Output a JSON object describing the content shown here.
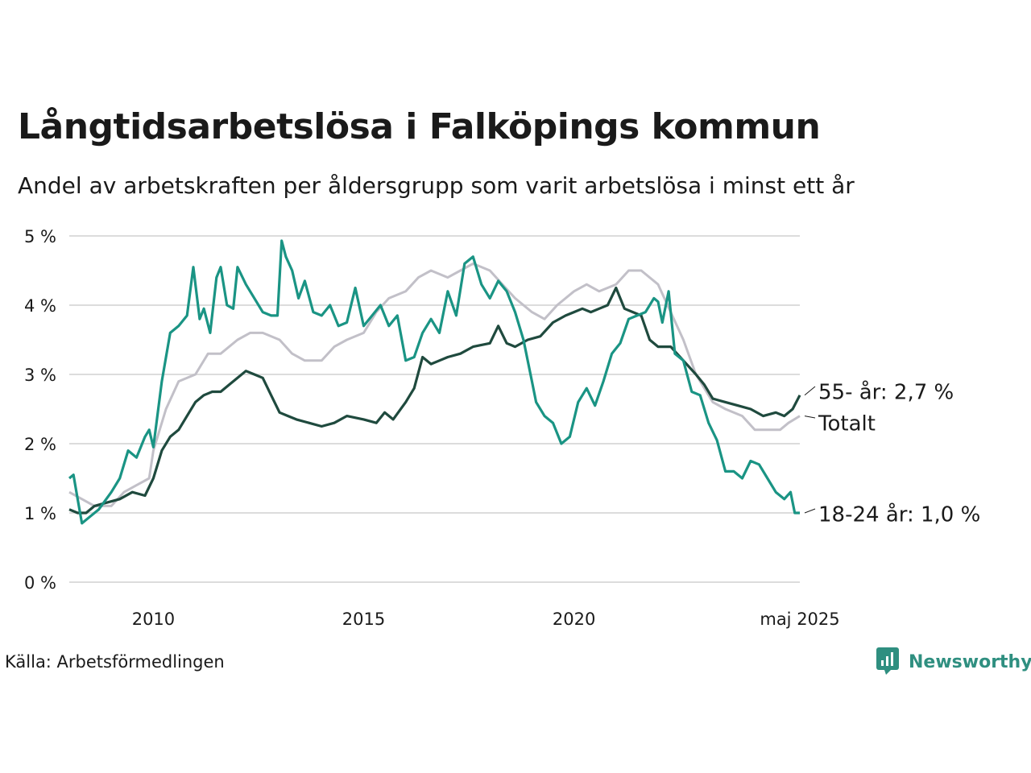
{
  "header": {
    "title": "Långtidsarbetslösa i Falköpings kommun",
    "subtitle": "Andel av arbetskraften per åldersgrupp som varit arbetslösa i minst ett år"
  },
  "footer": {
    "source": "Källa: Arbetsförmedlingen",
    "brand": "Newsworthy",
    "brand_icon": "newsworthy-logo-icon"
  },
  "colors": {
    "youth": "#1a9484",
    "older": "#1f4a3e",
    "total": "#c2c0c8",
    "grid": "#dcdcdc",
    "text": "#1a1a1a"
  },
  "chart_data": {
    "type": "line",
    "x_unit": "year (decimal)",
    "xlim": [
      2008.0,
      2025.37
    ],
    "ylim": [
      0,
      5
    ],
    "y_ticks": [
      0,
      1,
      2,
      3,
      4,
      5
    ],
    "y_tick_labels": [
      "0 %",
      "1 %",
      "2 %",
      "3 %",
      "4 %",
      "5 %"
    ],
    "x_ticks": [
      2010,
      2015,
      2020,
      2025.37
    ],
    "x_tick_labels": [
      "2010",
      "2015",
      "2020",
      "maj 2025"
    ],
    "grid": "horizontal",
    "legend": "end-labels-right",
    "series": [
      {
        "name": "Totalt",
        "key": "total",
        "label": "Totalt",
        "points": [
          [
            2008.0,
            1.3
          ],
          [
            2008.3,
            1.2
          ],
          [
            2008.6,
            1.1
          ],
          [
            2009.0,
            1.1
          ],
          [
            2009.3,
            1.3
          ],
          [
            2009.6,
            1.4
          ],
          [
            2009.9,
            1.5
          ],
          [
            2010.0,
            1.9
          ],
          [
            2010.3,
            2.5
          ],
          [
            2010.6,
            2.9
          ],
          [
            2011.0,
            3.0
          ],
          [
            2011.3,
            3.3
          ],
          [
            2011.6,
            3.3
          ],
          [
            2012.0,
            3.5
          ],
          [
            2012.3,
            3.6
          ],
          [
            2012.6,
            3.6
          ],
          [
            2013.0,
            3.5
          ],
          [
            2013.3,
            3.3
          ],
          [
            2013.6,
            3.2
          ],
          [
            2014.0,
            3.2
          ],
          [
            2014.3,
            3.4
          ],
          [
            2014.6,
            3.5
          ],
          [
            2015.0,
            3.6
          ],
          [
            2015.3,
            3.9
          ],
          [
            2015.6,
            4.1
          ],
          [
            2016.0,
            4.2
          ],
          [
            2016.3,
            4.4
          ],
          [
            2016.6,
            4.5
          ],
          [
            2017.0,
            4.4
          ],
          [
            2017.3,
            4.5
          ],
          [
            2017.6,
            4.6
          ],
          [
            2018.0,
            4.5
          ],
          [
            2018.3,
            4.3
          ],
          [
            2018.6,
            4.1
          ],
          [
            2019.0,
            3.9
          ],
          [
            2019.3,
            3.8
          ],
          [
            2019.6,
            4.0
          ],
          [
            2020.0,
            4.2
          ],
          [
            2020.3,
            4.3
          ],
          [
            2020.6,
            4.2
          ],
          [
            2021.0,
            4.3
          ],
          [
            2021.3,
            4.5
          ],
          [
            2021.6,
            4.5
          ],
          [
            2022.0,
            4.3
          ],
          [
            2022.3,
            3.9
          ],
          [
            2022.6,
            3.5
          ],
          [
            2022.9,
            3.0
          ],
          [
            2023.3,
            2.6
          ],
          [
            2023.6,
            2.5
          ],
          [
            2024.0,
            2.4
          ],
          [
            2024.3,
            2.2
          ],
          [
            2024.6,
            2.2
          ],
          [
            2024.9,
            2.2
          ],
          [
            2025.1,
            2.3
          ],
          [
            2025.37,
            2.4
          ]
        ]
      },
      {
        "name": "55- år",
        "key": "older",
        "label": "55- år: 2,7 %",
        "points": [
          [
            2008.0,
            1.05
          ],
          [
            2008.2,
            1.0
          ],
          [
            2008.4,
            1.0
          ],
          [
            2008.6,
            1.1
          ],
          [
            2008.9,
            1.15
          ],
          [
            2009.2,
            1.2
          ],
          [
            2009.5,
            1.3
          ],
          [
            2009.8,
            1.25
          ],
          [
            2010.0,
            1.5
          ],
          [
            2010.2,
            1.9
          ],
          [
            2010.4,
            2.1
          ],
          [
            2010.6,
            2.2
          ],
          [
            2010.8,
            2.4
          ],
          [
            2011.0,
            2.6
          ],
          [
            2011.2,
            2.7
          ],
          [
            2011.4,
            2.75
          ],
          [
            2011.6,
            2.75
          ],
          [
            2011.8,
            2.85
          ],
          [
            2012.0,
            2.95
          ],
          [
            2012.2,
            3.05
          ],
          [
            2012.4,
            3.0
          ],
          [
            2012.6,
            2.95
          ],
          [
            2012.8,
            2.7
          ],
          [
            2013.0,
            2.45
          ],
          [
            2013.2,
            2.4
          ],
          [
            2013.4,
            2.35
          ],
          [
            2013.7,
            2.3
          ],
          [
            2014.0,
            2.25
          ],
          [
            2014.3,
            2.3
          ],
          [
            2014.6,
            2.4
          ],
          [
            2015.0,
            2.35
          ],
          [
            2015.3,
            2.3
          ],
          [
            2015.5,
            2.45
          ],
          [
            2015.7,
            2.35
          ],
          [
            2016.0,
            2.6
          ],
          [
            2016.2,
            2.8
          ],
          [
            2016.4,
            3.25
          ],
          [
            2016.6,
            3.15
          ],
          [
            2016.8,
            3.2
          ],
          [
            2017.0,
            3.25
          ],
          [
            2017.3,
            3.3
          ],
          [
            2017.6,
            3.4
          ],
          [
            2018.0,
            3.45
          ],
          [
            2018.2,
            3.7
          ],
          [
            2018.4,
            3.45
          ],
          [
            2018.6,
            3.4
          ],
          [
            2018.9,
            3.5
          ],
          [
            2019.2,
            3.55
          ],
          [
            2019.5,
            3.75
          ],
          [
            2019.8,
            3.85
          ],
          [
            2020.0,
            3.9
          ],
          [
            2020.2,
            3.95
          ],
          [
            2020.4,
            3.9
          ],
          [
            2020.6,
            3.95
          ],
          [
            2020.8,
            4.0
          ],
          [
            2021.0,
            4.25
          ],
          [
            2021.2,
            3.95
          ],
          [
            2021.4,
            3.9
          ],
          [
            2021.6,
            3.85
          ],
          [
            2021.8,
            3.5
          ],
          [
            2022.0,
            3.4
          ],
          [
            2022.3,
            3.4
          ],
          [
            2022.6,
            3.2
          ],
          [
            2022.9,
            3.0
          ],
          [
            2023.1,
            2.85
          ],
          [
            2023.3,
            2.65
          ],
          [
            2023.6,
            2.6
          ],
          [
            2023.9,
            2.55
          ],
          [
            2024.2,
            2.5
          ],
          [
            2024.5,
            2.4
          ],
          [
            2024.8,
            2.45
          ],
          [
            2025.0,
            2.4
          ],
          [
            2025.2,
            2.5
          ],
          [
            2025.37,
            2.7
          ]
        ]
      },
      {
        "name": "18-24 år",
        "key": "youth",
        "label": "18-24 år: 1,0 %",
        "points": [
          [
            2008.0,
            1.5
          ],
          [
            2008.1,
            1.55
          ],
          [
            2008.2,
            1.2
          ],
          [
            2008.3,
            0.85
          ],
          [
            2008.5,
            0.95
          ],
          [
            2008.7,
            1.05
          ],
          [
            2009.0,
            1.3
          ],
          [
            2009.2,
            1.5
          ],
          [
            2009.4,
            1.9
          ],
          [
            2009.6,
            1.8
          ],
          [
            2009.8,
            2.1
          ],
          [
            2009.9,
            2.2
          ],
          [
            2010.0,
            1.95
          ],
          [
            2010.2,
            2.9
          ],
          [
            2010.4,
            3.6
          ],
          [
            2010.6,
            3.7
          ],
          [
            2010.8,
            3.85
          ],
          [
            2010.95,
            4.55
          ],
          [
            2011.1,
            3.8
          ],
          [
            2011.2,
            3.95
          ],
          [
            2011.35,
            3.6
          ],
          [
            2011.5,
            4.4
          ],
          [
            2011.6,
            4.55
          ],
          [
            2011.75,
            4.0
          ],
          [
            2011.9,
            3.95
          ],
          [
            2012.0,
            4.55
          ],
          [
            2012.2,
            4.3
          ],
          [
            2012.4,
            4.1
          ],
          [
            2012.6,
            3.9
          ],
          [
            2012.8,
            3.85
          ],
          [
            2012.95,
            3.85
          ],
          [
            2013.05,
            4.93
          ],
          [
            2013.15,
            4.7
          ],
          [
            2013.3,
            4.5
          ],
          [
            2013.45,
            4.1
          ],
          [
            2013.6,
            4.35
          ],
          [
            2013.8,
            3.9
          ],
          [
            2014.0,
            3.85
          ],
          [
            2014.2,
            4.0
          ],
          [
            2014.4,
            3.7
          ],
          [
            2014.6,
            3.75
          ],
          [
            2014.8,
            4.25
          ],
          [
            2015.0,
            3.7
          ],
          [
            2015.2,
            3.85
          ],
          [
            2015.4,
            4.0
          ],
          [
            2015.6,
            3.7
          ],
          [
            2015.8,
            3.85
          ],
          [
            2016.0,
            3.2
          ],
          [
            2016.2,
            3.25
          ],
          [
            2016.4,
            3.6
          ],
          [
            2016.6,
            3.8
          ],
          [
            2016.8,
            3.6
          ],
          [
            2017.0,
            4.2
          ],
          [
            2017.2,
            3.85
          ],
          [
            2017.4,
            4.6
          ],
          [
            2017.6,
            4.7
          ],
          [
            2017.8,
            4.3
          ],
          [
            2018.0,
            4.1
          ],
          [
            2018.2,
            4.35
          ],
          [
            2018.4,
            4.2
          ],
          [
            2018.6,
            3.9
          ],
          [
            2018.8,
            3.5
          ],
          [
            2019.0,
            2.9
          ],
          [
            2019.1,
            2.6
          ],
          [
            2019.3,
            2.4
          ],
          [
            2019.5,
            2.3
          ],
          [
            2019.7,
            2.0
          ],
          [
            2019.9,
            2.1
          ],
          [
            2020.1,
            2.6
          ],
          [
            2020.3,
            2.8
          ],
          [
            2020.5,
            2.55
          ],
          [
            2020.7,
            2.9
          ],
          [
            2020.9,
            3.3
          ],
          [
            2021.1,
            3.45
          ],
          [
            2021.3,
            3.8
          ],
          [
            2021.5,
            3.85
          ],
          [
            2021.7,
            3.9
          ],
          [
            2021.9,
            4.1
          ],
          [
            2022.0,
            4.05
          ],
          [
            2022.1,
            3.75
          ],
          [
            2022.25,
            4.2
          ],
          [
            2022.4,
            3.3
          ],
          [
            2022.6,
            3.2
          ],
          [
            2022.8,
            2.75
          ],
          [
            2023.0,
            2.7
          ],
          [
            2023.2,
            2.3
          ],
          [
            2023.4,
            2.05
          ],
          [
            2023.6,
            1.6
          ],
          [
            2023.8,
            1.6
          ],
          [
            2024.0,
            1.5
          ],
          [
            2024.2,
            1.75
          ],
          [
            2024.4,
            1.7
          ],
          [
            2024.6,
            1.5
          ],
          [
            2024.8,
            1.3
          ],
          [
            2025.0,
            1.2
          ],
          [
            2025.15,
            1.3
          ],
          [
            2025.25,
            1.0
          ],
          [
            2025.37,
            1.0
          ]
        ]
      }
    ]
  }
}
